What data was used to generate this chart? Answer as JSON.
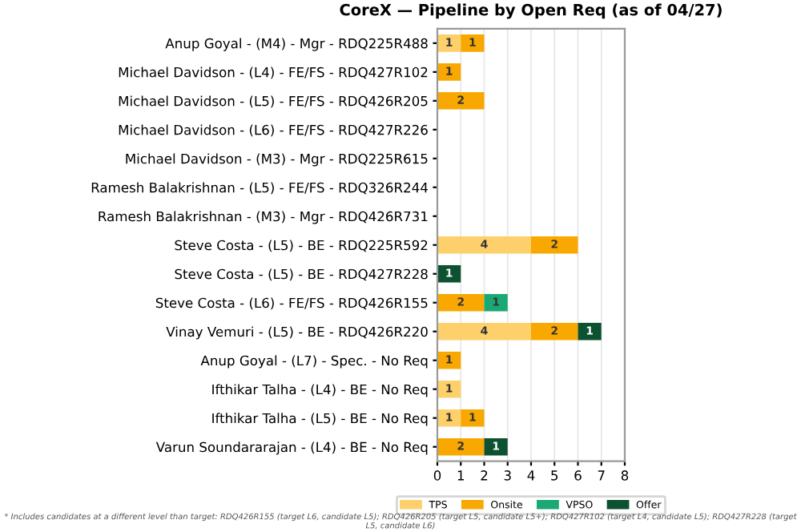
{
  "chart_data": {
    "type": "bar",
    "orientation": "horizontal",
    "stacked": true,
    "title": "CoreX — Pipeline by Open Req (as of 04/27)",
    "categories": [
      "Anup Goyal - (M4) - Mgr - RDQ225R488",
      "Michael Davidson - (L4) - FE/FS - RDQ427R102",
      "Michael Davidson - (L5) - FE/FS - RDQ426R205",
      "Michael Davidson - (L6) - FE/FS - RDQ427R226",
      "Michael Davidson - (M3) - Mgr - RDQ225R615",
      "Ramesh Balakrishnan - (L5) - FE/FS - RDQ326R244",
      "Ramesh Balakrishnan - (M3) - Mgr - RDQ426R731",
      "Steve Costa - (L5) - BE - RDQ225R592",
      "Steve Costa - (L5) - BE - RDQ427R228",
      "Steve Costa - (L6) - FE/FS - RDQ426R155",
      "Vinay Vemuri - (L5) - BE - RDQ426R220",
      "Anup Goyal - (L7) - Spec. - No Req",
      "Ifthikar Talha - (L4) - BE - No Req",
      "Ifthikar Talha - (L5) - BE - No Req",
      "Varun Soundararajan - (L4) - BE - No Req"
    ],
    "series": [
      {
        "name": "TPS",
        "color": "#fdd06b",
        "values": [
          1,
          null,
          null,
          null,
          null,
          null,
          null,
          4,
          null,
          null,
          4,
          null,
          1,
          1,
          null
        ]
      },
      {
        "name": "Onsite",
        "color": "#f8a800",
        "values": [
          1,
          1,
          2,
          null,
          null,
          null,
          null,
          2,
          null,
          2,
          2,
          1,
          null,
          1,
          2
        ]
      },
      {
        "name": "VPSO",
        "color": "#1aa874",
        "values": [
          null,
          null,
          null,
          null,
          null,
          null,
          null,
          null,
          null,
          1,
          null,
          null,
          null,
          null,
          null
        ]
      },
      {
        "name": "Offer",
        "color": "#0d5230",
        "values": [
          null,
          null,
          null,
          null,
          null,
          null,
          null,
          null,
          1,
          null,
          1,
          null,
          null,
          null,
          1
        ]
      }
    ],
    "xlim": [
      0,
      8
    ],
    "xticks": [
      0,
      1,
      2,
      3,
      4,
      5,
      6,
      7,
      8
    ],
    "grid": "x",
    "legend": "bottom",
    "data_labels": true,
    "annotations": [
      "* Includes candidates at a different level than target: RDQ426R155 (target L6, candidate L5); RDQ426R205 (target L5, candidate L5+); RDQ427R102 (target L4, candidate L5); RDQ427R228 (target L5, candidate L6)"
    ]
  }
}
